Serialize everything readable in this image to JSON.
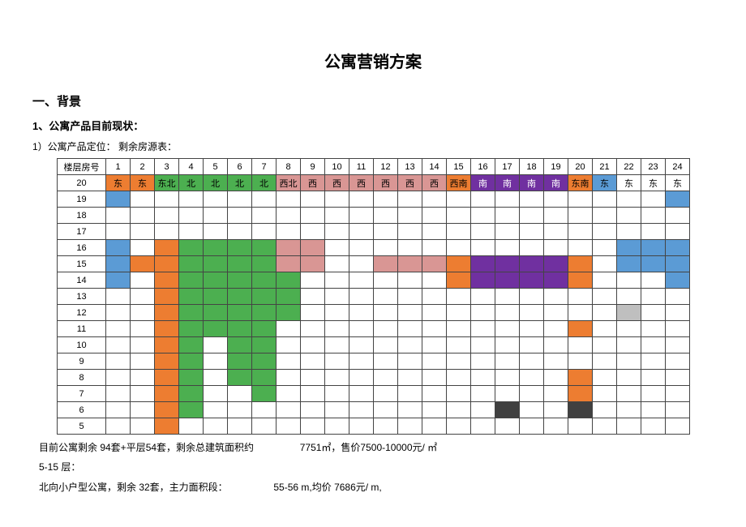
{
  "title": "公寓营销方案",
  "section1": "一、背景",
  "section1_1": "1、公寓产品目前现状：",
  "section1_1_1": "1）公寓产品定位： 剩余房源表：",
  "colors": {
    "blue": "#5b9bd5",
    "orange": "#ed7d31",
    "green": "#4caf50",
    "pink": "#d99694",
    "purple": "#7030a0",
    "dark": "#404040",
    "gray": "#bfbfbf",
    "white": "#ffffff"
  },
  "table": {
    "rowHeader": "楼层房号",
    "cols": [
      "1",
      "2",
      "3",
      "4",
      "5",
      "6",
      "7",
      "8",
      "9",
      "10",
      "11",
      "12",
      "13",
      "14",
      "15",
      "16",
      "17",
      "18",
      "19",
      "20",
      "21",
      "22",
      "23",
      "24"
    ],
    "floors": [
      "20",
      "19",
      "18",
      "17",
      "16",
      "15",
      "14",
      "13",
      "12",
      "11",
      "10",
      "9",
      "8",
      "7",
      "6",
      "5"
    ],
    "row20_labels": [
      "东",
      "东",
      "东北",
      "北",
      "北",
      "北",
      "北",
      "西北",
      "西",
      "西",
      "西",
      "西",
      "西",
      "西",
      "西南",
      "南",
      "南",
      "南",
      "南",
      "东南",
      "东",
      "东",
      "东",
      "东"
    ],
    "row20_colors": [
      "orange",
      "orange",
      "green",
      "green",
      "green",
      "green",
      "green",
      "pink",
      "pink",
      "pink",
      "pink",
      "pink",
      "pink",
      "pink",
      "orange",
      "purple",
      "purple",
      "purple",
      "purple",
      "orange",
      "blue",
      "",
      "",
      ""
    ],
    "cells": {
      "19": {
        "1": "blue",
        "24": "blue"
      },
      "18": {},
      "17": {},
      "16": {
        "1": "blue",
        "3": "orange",
        "4": "green",
        "5": "green",
        "6": "green",
        "7": "green",
        "8": "pink",
        "9": "pink",
        "22": "blue",
        "23": "blue",
        "24": "blue"
      },
      "15": {
        "1": "blue",
        "2": "orange",
        "3": "orange",
        "4": "green",
        "5": "green",
        "6": "green",
        "7": "green",
        "8": "pink",
        "9": "pink",
        "12": "pink",
        "13": "pink",
        "14": "pink",
        "15": "orange",
        "16": "purple",
        "17": "purple",
        "18": "purple",
        "19": "purple",
        "20": "orange",
        "22": "blue",
        "23": "blue",
        "24": "blue"
      },
      "14": {
        "1": "blue",
        "3": "orange",
        "4": "green",
        "5": "green",
        "6": "green",
        "7": "green",
        "8": "green",
        "15": "orange",
        "16": "purple",
        "17": "purple",
        "18": "purple",
        "19": "purple",
        "20": "orange",
        "24": "blue"
      },
      "13": {
        "3": "orange",
        "4": "green",
        "5": "green",
        "6": "green",
        "7": "green",
        "8": "green"
      },
      "12": {
        "3": "orange",
        "4": "green",
        "5": "green",
        "6": "green",
        "7": "green",
        "8": "green",
        "22": "gray"
      },
      "11": {
        "3": "orange",
        "4": "green",
        "5": "green",
        "6": "green",
        "7": "green",
        "20": "orange"
      },
      "10": {
        "3": "orange",
        "4": "green",
        "6": "green",
        "7": "green"
      },
      "9": {
        "3": "orange",
        "4": "green",
        "6": "green",
        "7": "green"
      },
      "8": {
        "3": "orange",
        "4": "green",
        "6": "green",
        "7": "green",
        "20": "orange"
      },
      "7": {
        "3": "orange",
        "4": "green",
        "7": "green",
        "20": "orange"
      },
      "6": {
        "3": "orange",
        "4": "green",
        "17": "dark",
        "20": "dark"
      },
      "5": {
        "3": "orange"
      }
    }
  },
  "footer": {
    "l1_a": "目前公寓剩余 94套+平层54套，剩余总建筑面积约",
    "l1_b": "7751㎡，售价7500-10000元/ ㎡",
    "l2": "5-15 层：",
    "l3_a": "北向小户型公寓，剩余 32套，主力面积段：",
    "l3_b": "55-56 m,均价 7686元/ m,"
  }
}
